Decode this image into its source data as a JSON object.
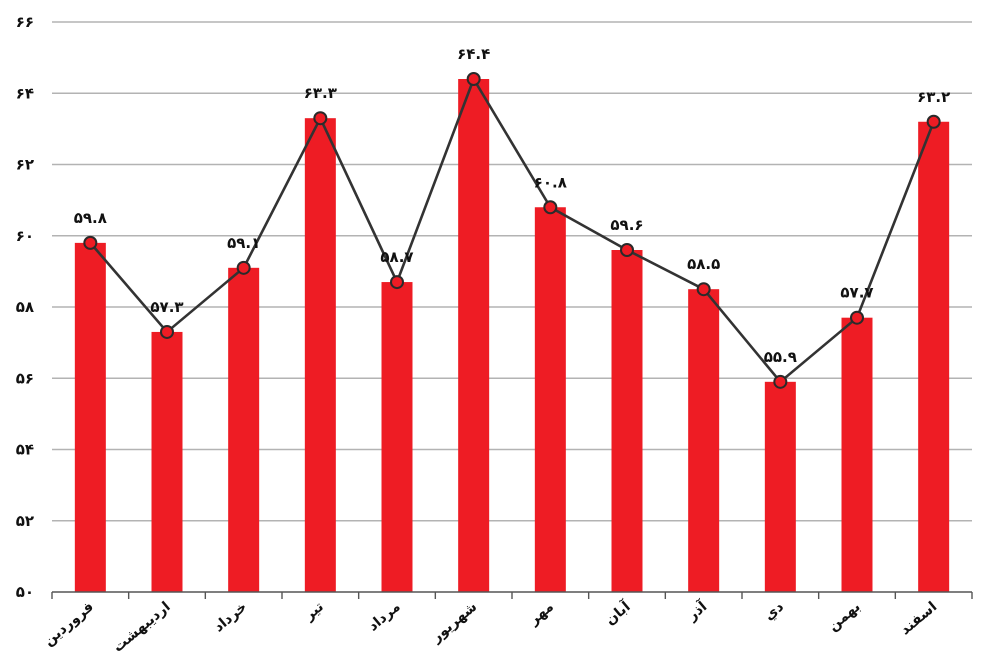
{
  "chart_data": {
    "type": "bar",
    "categories": [
      "فروردين",
      "ارديبهشت",
      "خرداد",
      "تير",
      "مرداد",
      "شهريور",
      "مهر",
      "آبان",
      "آذر",
      "دي",
      "بهمن",
      "اسفند"
    ],
    "values": [
      59.8,
      57.3,
      59.1,
      63.3,
      58.7,
      64.4,
      60.8,
      59.6,
      58.5,
      55.9,
      57.7,
      63.2
    ],
    "data_labels": [
      "۵۹.۸",
      "۵۷.۳",
      "۵۹.۱",
      "۶۳.۳",
      "۵۸.۷",
      "۶۴.۴",
      "۶۰.۸",
      "۵۹.۶",
      "۵۸.۵",
      "۵۵.۹",
      "۵۷.۷",
      "۶۳.۲"
    ],
    "overlay_line": true,
    "ylim": [
      50,
      66
    ],
    "yticks": [
      50,
      52,
      54,
      56,
      58,
      60,
      62,
      64,
      66
    ],
    "ytick_labels": [
      "۵۰",
      "۵۲",
      "۵۴",
      "۵۶",
      "۵۸",
      "۶۰",
      "۶۲",
      "۶۴",
      "۶۶"
    ],
    "grid": true,
    "legend": "none",
    "title": "",
    "xlabel": "",
    "ylabel": "",
    "colors": {
      "bar": "#ee1c24",
      "line": "#333333",
      "marker_fill": "#ee1c24",
      "marker_stroke": "#2a2a2a",
      "grid": "#b3b3b3",
      "axis": "#555555"
    }
  }
}
